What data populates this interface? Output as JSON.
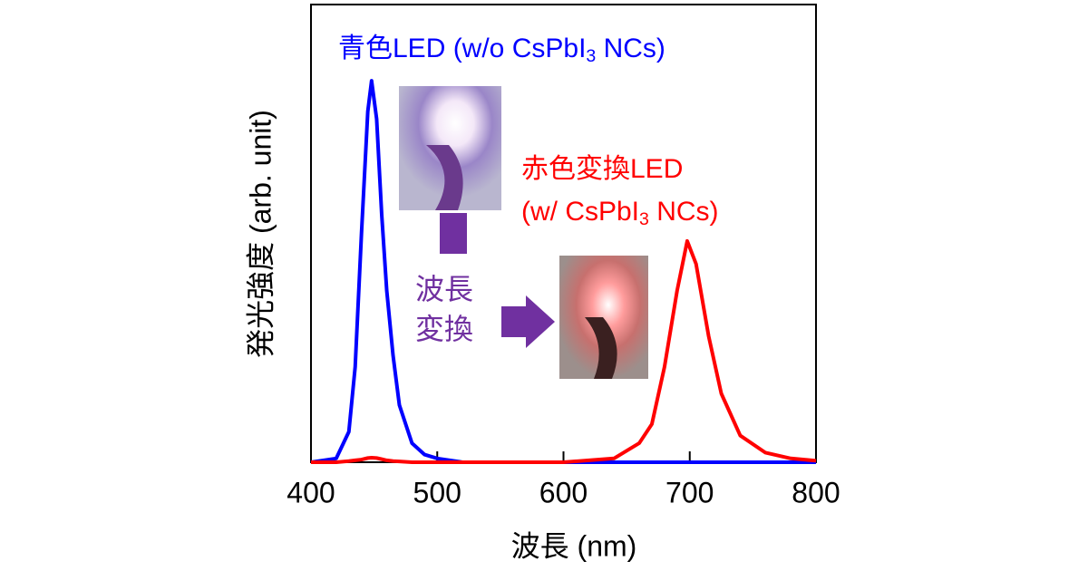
{
  "chart_data": {
    "type": "line",
    "xlabel": "波長 (nm)",
    "ylabel": "発光強度 (arb. unit)",
    "x": [
      400,
      420,
      430,
      435,
      440,
      445,
      448,
      452,
      456,
      460,
      465,
      470,
      480,
      490,
      500,
      520,
      560,
      600,
      640,
      660,
      670,
      680,
      690,
      698,
      705,
      715,
      725,
      740,
      760,
      780,
      800
    ],
    "series": [
      {
        "color": "#0000ff",
        "values": [
          0,
          0.01,
          0.08,
          0.25,
          0.6,
          0.92,
          1.0,
          0.9,
          0.65,
          0.45,
          0.28,
          0.15,
          0.05,
          0.02,
          0.01,
          0,
          0,
          0,
          0,
          0,
          0,
          0,
          0,
          0,
          0,
          0,
          0,
          0,
          0,
          0,
          0
        ]
      },
      {
        "color": "#ff0000",
        "values": [
          0,
          0,
          0.003,
          0.005,
          0.007,
          0.011,
          0.012,
          0.011,
          0.008,
          0.005,
          0.003,
          0.002,
          0,
          0,
          0,
          0,
          0,
          0,
          0.01,
          0.05,
          0.1,
          0.25,
          0.45,
          0.58,
          0.52,
          0.33,
          0.18,
          0.07,
          0.025,
          0.01,
          0.004
        ]
      }
    ],
    "xlim": [
      400,
      800
    ],
    "ylim": [
      0,
      1.2
    ],
    "xticks": [
      400,
      500,
      600,
      700,
      800
    ],
    "annotations": [
      {
        "color": "#0000ff",
        "lines": [
          [
            "青色LED (w/o CsPbI",
            "3",
            " NCs)"
          ]
        ]
      },
      {
        "color": "#ff0000",
        "lines": [
          [
            "赤色変換LED"
          ],
          [
            "(w/ CsPbI",
            "3",
            " NCs)"
          ]
        ]
      },
      {
        "color": "#7030a0",
        "lines": [
          [
            "波長"
          ],
          [
            "変換"
          ]
        ]
      }
    ]
  }
}
